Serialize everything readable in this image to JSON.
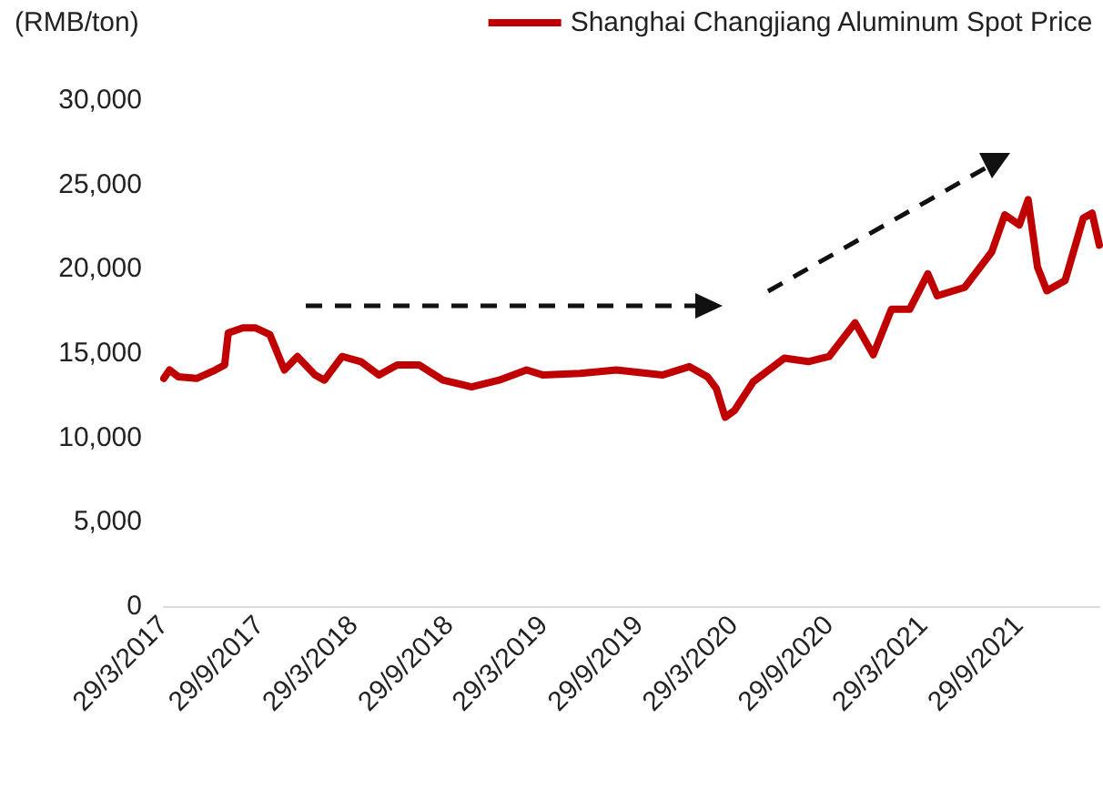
{
  "chart_data": {
    "type": "line",
    "ylabel": "(RMB/ton)",
    "legend": "top right",
    "grid": false,
    "marker": "none",
    "line_style": "solid",
    "series": [
      {
        "name": "Shanghai Changjiang Aluminum Spot Price",
        "color": "#c00000",
        "x": [
          "2017-03-29",
          "2017-04-09",
          "2017-04-26",
          "2017-05-31",
          "2017-07-06",
          "2017-07-24",
          "2017-07-31",
          "2017-08-28",
          "2017-09-21",
          "2017-10-19",
          "2017-11-16",
          "2017-12-11",
          "2018-01-14",
          "2018-02-01",
          "2018-03-07",
          "2018-04-12",
          "2018-05-17",
          "2018-06-21",
          "2018-08-02",
          "2018-09-17",
          "2018-11-11",
          "2019-01-03",
          "2019-02-25",
          "2019-03-29",
          "2019-06-08",
          "2019-08-17",
          "2019-11-13",
          "2020-01-04",
          "2020-02-08",
          "2020-02-25",
          "2020-03-13",
          "2020-03-31",
          "2020-05-06",
          "2020-07-05",
          "2020-08-20",
          "2020-09-29",
          "2020-11-18",
          "2020-12-23",
          "2021-01-27",
          "2021-03-03",
          "2021-04-07",
          "2021-04-25",
          "2021-06-17",
          "2021-08-08",
          "2021-09-02",
          "2021-09-30",
          "2021-10-17",
          "2021-11-04",
          "2021-11-22",
          "2021-12-27",
          "2022-01-31",
          "2022-02-17",
          "2022-03-03"
        ],
        "values": [
          13500,
          14000,
          13600,
          13500,
          14000,
          14300,
          16200,
          16500,
          16500,
          16100,
          14000,
          14800,
          13700,
          13400,
          14800,
          14500,
          13700,
          14300,
          14300,
          13400,
          13000,
          13400,
          14000,
          13700,
          13800,
          14000,
          13700,
          14200,
          13600,
          12900,
          11200,
          11600,
          13300,
          14700,
          14500,
          14800,
          16800,
          14900,
          17600,
          17600,
          19700,
          18400,
          18900,
          21000,
          23200,
          22600,
          24100,
          20100,
          18700,
          19300,
          23000,
          23300,
          21400
        ]
      }
    ],
    "xticks": [
      {
        "value": "2017-03-29",
        "label": "29/3/2017"
      },
      {
        "value": "2017-09-29",
        "label": "29/9/2017"
      },
      {
        "value": "2018-03-29",
        "label": "29/3/2018"
      },
      {
        "value": "2018-09-29",
        "label": "29/9/2018"
      },
      {
        "value": "2019-03-29",
        "label": "29/3/2019"
      },
      {
        "value": "2019-09-29",
        "label": "29/9/2019"
      },
      {
        "value": "2020-03-29",
        "label": "29/3/2020"
      },
      {
        "value": "2020-09-29",
        "label": "29/9/2020"
      },
      {
        "value": "2021-03-29",
        "label": "29/3/2021"
      },
      {
        "value": "2021-09-29",
        "label": "29/9/2021"
      }
    ],
    "xlim": [
      "2017-03-29",
      "2022-03-03"
    ],
    "ylim": [
      0,
      30000
    ],
    "yticks": [
      0,
      {
        "value": 5000,
        "label": "5,000"
      },
      {
        "value": 10000,
        "label": "10,000"
      },
      {
        "value": 15000,
        "label": "15,000"
      },
      {
        "value": 20000,
        "label": "20,000"
      },
      {
        "value": 25000,
        "label": "25,000"
      },
      {
        "value": 30000,
        "label": "30,000"
      }
    ]
  }
}
